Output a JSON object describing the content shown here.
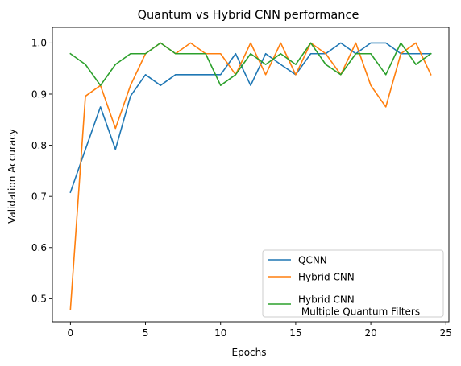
{
  "chart_data": {
    "type": "line",
    "title": "Quantum vs Hybrid CNN performance",
    "xlabel": "Epochs",
    "ylabel": "Validation Accuracy",
    "xlim": [
      -1.2,
      25.2
    ],
    "ylim": [
      0.455,
      1.0305
    ],
    "xticks": [
      0,
      5,
      10,
      15,
      20,
      25
    ],
    "yticks": [
      0.5,
      0.6,
      0.7,
      0.8,
      0.9,
      1.0
    ],
    "xtick_labels": [
      "0",
      "5",
      "10",
      "15",
      "20",
      "25"
    ],
    "ytick_labels": [
      "0.5",
      "0.6",
      "0.7",
      "0.8",
      "0.9",
      "1.0"
    ],
    "grid": false,
    "legend_position": "lower-right",
    "x": [
      0,
      1,
      2,
      3,
      4,
      5,
      6,
      7,
      8,
      9,
      10,
      11,
      12,
      13,
      14,
      15,
      16,
      17,
      18,
      19,
      20,
      21,
      22,
      23,
      24
    ],
    "series": [
      {
        "name": "QCNN",
        "color": "#1f77b4",
        "values": [
          0.708,
          0.792,
          0.875,
          0.792,
          0.896,
          0.938,
          0.917,
          0.938,
          0.938,
          0.938,
          0.938,
          0.979,
          0.917,
          0.979,
          0.958,
          0.938,
          0.979,
          0.979,
          1.0,
          0.979,
          1.0,
          1.0,
          0.979,
          0.979,
          0.979
        ]
      },
      {
        "name": "Hybrid CNN",
        "color": "#ff7f0e",
        "values": [
          0.479,
          0.896,
          0.917,
          0.833,
          0.917,
          0.979,
          1.0,
          0.979,
          1.0,
          0.979,
          0.979,
          0.938,
          1.0,
          0.938,
          1.0,
          0.938,
          1.0,
          0.979,
          0.938,
          1.0,
          0.917,
          0.875,
          0.979,
          1.0,
          0.938
        ]
      },
      {
        "name": "Hybrid CNN\n Multiple Quantum Filters",
        "color": "#2ca02c",
        "values": [
          0.979,
          0.958,
          0.917,
          0.958,
          0.979,
          0.979,
          1.0,
          0.979,
          0.979,
          0.979,
          0.917,
          0.938,
          0.979,
          0.958,
          0.979,
          0.958,
          1.0,
          0.958,
          0.938,
          0.979,
          0.979,
          0.938,
          1.0,
          0.958,
          0.979
        ]
      }
    ]
  }
}
